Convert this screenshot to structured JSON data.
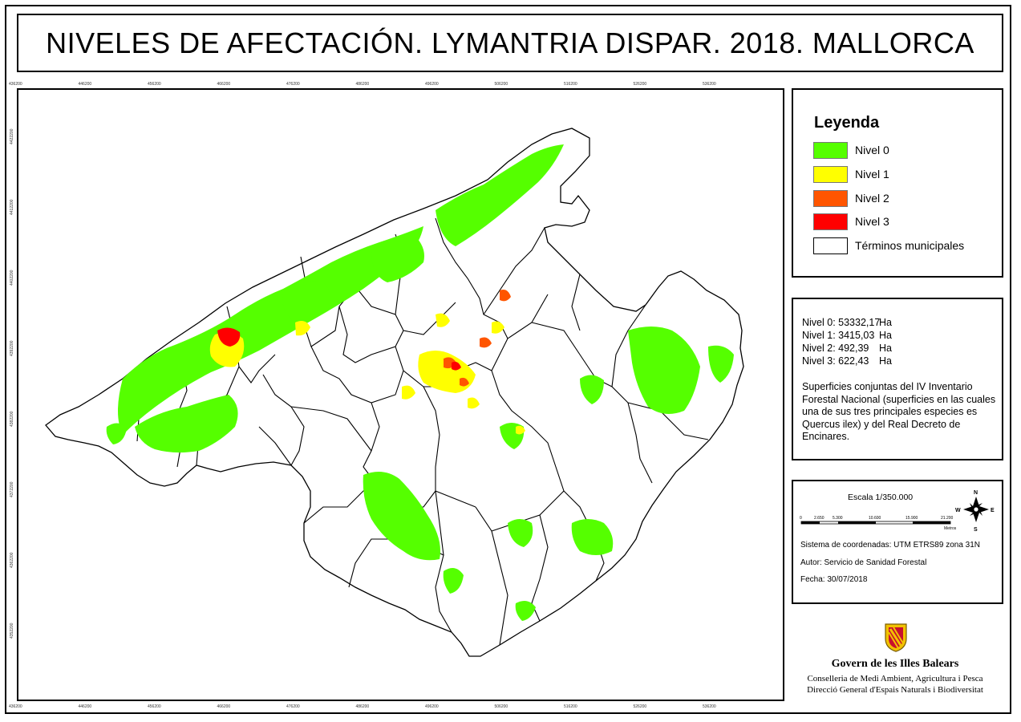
{
  "title": "NIVELES DE AFECTACIÓN. LYMANTRIA DISPAR. 2018. MALLORCA",
  "grid": {
    "x_ticks": [
      "436200",
      "446200",
      "456200",
      "466200",
      "476200",
      "486200",
      "496200",
      "506200",
      "516200",
      "526200",
      "536200"
    ],
    "y_ticks": [
      "4422200",
      "4412200",
      "4402200",
      "4392200",
      "4382200",
      "4372200",
      "4362200",
      "4352200"
    ]
  },
  "legend": {
    "title": "Leyenda",
    "items": [
      {
        "label": "Nivel 0",
        "color": "#55ff00"
      },
      {
        "label": "Nivel 1",
        "color": "#ffff00"
      },
      {
        "label": "Nivel 2",
        "color": "#ff5500"
      },
      {
        "label": "Nivel 3",
        "color": "#ff0000"
      },
      {
        "label": "Términos municipales",
        "color": "#ffffff"
      }
    ]
  },
  "stats": {
    "rows": [
      {
        "label": "Nivel 0: 53332,17",
        "unit": "Ha"
      },
      {
        "label": "Nivel 1: 3415,03",
        "unit": "Ha"
      },
      {
        "label": "Nivel 2: 492,39",
        "unit": "Ha"
      },
      {
        "label": "Nivel 3: 622,43",
        "unit": "Ha"
      }
    ],
    "description": "Superficies conjuntas del IV Inventario Forestal Nacional (superficies en las cuales una de sus tres principales especies es Quercus ilex) y del Real Decreto de Encinares."
  },
  "scale": {
    "label": "Escala 1/350.000",
    "ticks": [
      "0",
      "2.650",
      "5.300",
      "10.600",
      "15.900",
      "21.200"
    ],
    "unit": "Metros",
    "compass": {
      "n": "N",
      "s": "S",
      "e": "E",
      "w": "W"
    }
  },
  "metadata": {
    "crs": "Sistema de coordenadas:  UTM ETRS89 zona 31N",
    "author": "Autor: Servicio de Sanidad Forestal",
    "date": "Fecha: 30/07/2018"
  },
  "logo": {
    "name": "Govern de les Illes Balears",
    "line1": "Conselleria de Medi Ambient, Agricultura i Pesca",
    "line2": "Direcció General d'Espais Naturals i Biodiversitat"
  }
}
